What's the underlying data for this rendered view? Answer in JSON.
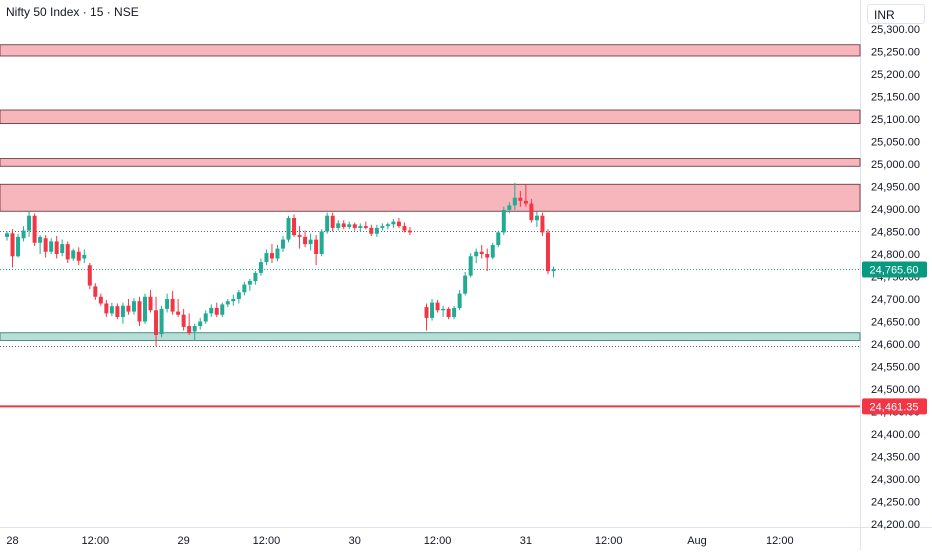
{
  "header": {
    "title": "Nifty 50 Index · 15 · NSE",
    "currency": "INR"
  },
  "colors": {
    "up": "#22ab94",
    "down": "#f23645",
    "zone_fill": "#f7b6bc",
    "support_fill": "#b7ddd6",
    "last_price_bg": "#089981",
    "level_line": "#f23645"
  },
  "chart_data": {
    "type": "candlestick",
    "title": "Nifty 50 Index · 15 · NSE",
    "currency": "INR",
    "ylim": [
      24175,
      25335
    ],
    "y_ticks": [
      25300,
      25250,
      25200,
      25150,
      25100,
      25050,
      25000,
      24950,
      24900,
      24850,
      24800,
      24750,
      24700,
      24650,
      24600,
      24550,
      24500,
      24450,
      24400,
      24350,
      24300,
      24250,
      24200
    ],
    "y_tick_labels": [
      "25,300.00",
      "25,250.00",
      "25,200.00",
      "25,150.00",
      "25,100.00",
      "25,050.00",
      "25,000.00",
      "24,950.00",
      "24,900.00",
      "24,850.00",
      "24,800.00",
      "24,750.00",
      "24,700.00",
      "24,650.00",
      "24,600.00",
      "24,550.00",
      "24,500.00",
      "24,450.00",
      "24,400.00",
      "24,350.00",
      "24,300.00",
      "24,250.00",
      "24,200.00"
    ],
    "x_range": [
      0,
      128
    ],
    "x_ticks": [
      {
        "label": "28",
        "x": 1
      },
      {
        "label": "12:00",
        "x": 16
      },
      {
        "label": "29",
        "x": 32
      },
      {
        "label": "12:00",
        "x": 47
      },
      {
        "label": "30",
        "x": 63
      },
      {
        "label": "12:00",
        "x": 78
      },
      {
        "label": "31",
        "x": 94
      },
      {
        "label": "12:00",
        "x": 109
      },
      {
        "label": "Aug",
        "x": 125
      },
      {
        "label": "12:00",
        "x": 140
      }
    ],
    "zones": [
      {
        "from": 25240,
        "to": 25265,
        "kind": "resistance"
      },
      {
        "from": 25090,
        "to": 25120,
        "kind": "resistance"
      },
      {
        "from": 24995,
        "to": 25012,
        "kind": "resistance"
      },
      {
        "from": 24895,
        "to": 24955,
        "kind": "resistance"
      },
      {
        "from": 24608,
        "to": 24625,
        "kind": "support"
      }
    ],
    "dotted_levels": [
      24852,
      24766,
      24596
    ],
    "horizontal_levels": [
      {
        "value": 24461.35,
        "label": "24,461.35"
      }
    ],
    "last_price": {
      "value": 24765.6,
      "label": "24,765.60"
    },
    "candles": [
      {
        "x": 0,
        "o": 24838,
        "h": 24850,
        "l": 24830,
        "c": 24846
      },
      {
        "x": 1,
        "o": 24846,
        "h": 24855,
        "l": 24770,
        "c": 24795
      },
      {
        "x": 2,
        "o": 24795,
        "h": 24845,
        "l": 24792,
        "c": 24838
      },
      {
        "x": 3,
        "o": 24835,
        "h": 24862,
        "l": 24828,
        "c": 24852
      },
      {
        "x": 4,
        "o": 24852,
        "h": 24895,
        "l": 24838,
        "c": 24885
      },
      {
        "x": 5,
        "o": 24885,
        "h": 24890,
        "l": 24818,
        "c": 24825
      },
      {
        "x": 6,
        "o": 24825,
        "h": 24842,
        "l": 24800,
        "c": 24838
      },
      {
        "x": 7,
        "o": 24835,
        "h": 24842,
        "l": 24792,
        "c": 24805
      },
      {
        "x": 8,
        "o": 24805,
        "h": 24835,
        "l": 24800,
        "c": 24828
      },
      {
        "x": 9,
        "o": 24828,
        "h": 24840,
        "l": 24790,
        "c": 24800
      },
      {
        "x": 10,
        "o": 24802,
        "h": 24832,
        "l": 24795,
        "c": 24822
      },
      {
        "x": 11,
        "o": 24822,
        "h": 24828,
        "l": 24780,
        "c": 24788
      },
      {
        "x": 12,
        "o": 24790,
        "h": 24812,
        "l": 24785,
        "c": 24808
      },
      {
        "x": 13,
        "o": 24805,
        "h": 24815,
        "l": 24775,
        "c": 24785
      },
      {
        "x": 14,
        "o": 24790,
        "h": 24810,
        "l": 24780,
        "c": 24798
      },
      {
        "x": 15,
        "o": 24775,
        "h": 24780,
        "l": 24722,
        "c": 24730
      },
      {
        "x": 16,
        "o": 24728,
        "h": 24735,
        "l": 24698,
        "c": 24705
      },
      {
        "x": 17,
        "o": 24705,
        "h": 24712,
        "l": 24685,
        "c": 24690
      },
      {
        "x": 18,
        "o": 24690,
        "h": 24698,
        "l": 24660,
        "c": 24668
      },
      {
        "x": 19,
        "o": 24668,
        "h": 24692,
        "l": 24662,
        "c": 24684
      },
      {
        "x": 20,
        "o": 24684,
        "h": 24690,
        "l": 24655,
        "c": 24660
      },
      {
        "x": 21,
        "o": 24660,
        "h": 24692,
        "l": 24645,
        "c": 24685
      },
      {
        "x": 22,
        "o": 24685,
        "h": 24700,
        "l": 24665,
        "c": 24672
      },
      {
        "x": 23,
        "o": 24672,
        "h": 24702,
        "l": 24665,
        "c": 24695
      },
      {
        "x": 24,
        "o": 24695,
        "h": 24705,
        "l": 24640,
        "c": 24650
      },
      {
        "x": 25,
        "o": 24650,
        "h": 24712,
        "l": 24645,
        "c": 24705
      },
      {
        "x": 26,
        "o": 24705,
        "h": 24720,
        "l": 24670,
        "c": 24675
      },
      {
        "x": 27,
        "o": 24675,
        "h": 24705,
        "l": 24595,
        "c": 24620
      },
      {
        "x": 28,
        "o": 24622,
        "h": 24685,
        "l": 24615,
        "c": 24678
      },
      {
        "x": 29,
        "o": 24678,
        "h": 24712,
        "l": 24670,
        "c": 24700
      },
      {
        "x": 30,
        "o": 24700,
        "h": 24718,
        "l": 24665,
        "c": 24672
      },
      {
        "x": 31,
        "o": 24672,
        "h": 24700,
        "l": 24660,
        "c": 24665
      },
      {
        "x": 32,
        "o": 24665,
        "h": 24678,
        "l": 24630,
        "c": 24638
      },
      {
        "x": 33,
        "o": 24640,
        "h": 24668,
        "l": 24620,
        "c": 24625
      },
      {
        "x": 34,
        "o": 24628,
        "h": 24645,
        "l": 24608,
        "c": 24640
      },
      {
        "x": 35,
        "o": 24640,
        "h": 24658,
        "l": 24632,
        "c": 24650
      },
      {
        "x": 36,
        "o": 24650,
        "h": 24675,
        "l": 24645,
        "c": 24668
      },
      {
        "x": 37,
        "o": 24668,
        "h": 24688,
        "l": 24660,
        "c": 24680
      },
      {
        "x": 38,
        "o": 24680,
        "h": 24692,
        "l": 24660,
        "c": 24665
      },
      {
        "x": 39,
        "o": 24665,
        "h": 24692,
        "l": 24660,
        "c": 24688
      },
      {
        "x": 40,
        "o": 24688,
        "h": 24700,
        "l": 24682,
        "c": 24695
      },
      {
        "x": 41,
        "o": 24695,
        "h": 24710,
        "l": 24685,
        "c": 24700
      },
      {
        "x": 42,
        "o": 24700,
        "h": 24720,
        "l": 24690,
        "c": 24715
      },
      {
        "x": 43,
        "o": 24715,
        "h": 24738,
        "l": 24708,
        "c": 24732
      },
      {
        "x": 44,
        "o": 24732,
        "h": 24745,
        "l": 24718,
        "c": 24740
      },
      {
        "x": 45,
        "o": 24740,
        "h": 24762,
        "l": 24732,
        "c": 24758
      },
      {
        "x": 46,
        "o": 24758,
        "h": 24790,
        "l": 24752,
        "c": 24782
      },
      {
        "x": 47,
        "o": 24782,
        "h": 24810,
        "l": 24775,
        "c": 24802
      },
      {
        "x": 48,
        "o": 24802,
        "h": 24822,
        "l": 24780,
        "c": 24790
      },
      {
        "x": 49,
        "o": 24790,
        "h": 24820,
        "l": 24784,
        "c": 24812
      },
      {
        "x": 50,
        "o": 24812,
        "h": 24840,
        "l": 24805,
        "c": 24832
      },
      {
        "x": 51,
        "o": 24832,
        "h": 24885,
        "l": 24826,
        "c": 24880
      },
      {
        "x": 52,
        "o": 24880,
        "h": 24888,
        "l": 24838,
        "c": 24842
      },
      {
        "x": 53,
        "o": 24842,
        "h": 24862,
        "l": 24812,
        "c": 24838
      },
      {
        "x": 54,
        "o": 24838,
        "h": 24852,
        "l": 24815,
        "c": 24822
      },
      {
        "x": 55,
        "o": 24822,
        "h": 24845,
        "l": 24808,
        "c": 24832
      },
      {
        "x": 56,
        "o": 24832,
        "h": 24842,
        "l": 24775,
        "c": 24800
      },
      {
        "x": 57,
        "o": 24800,
        "h": 24855,
        "l": 24795,
        "c": 24850
      },
      {
        "x": 58,
        "o": 24850,
        "h": 24892,
        "l": 24845,
        "c": 24885
      },
      {
        "x": 59,
        "o": 24885,
        "h": 24892,
        "l": 24850,
        "c": 24858
      },
      {
        "x": 60,
        "o": 24858,
        "h": 24875,
        "l": 24852,
        "c": 24868
      },
      {
        "x": 61,
        "o": 24868,
        "h": 24875,
        "l": 24855,
        "c": 24860
      },
      {
        "x": 62,
        "o": 24860,
        "h": 24872,
        "l": 24855,
        "c": 24866
      },
      {
        "x": 63,
        "o": 24866,
        "h": 24870,
        "l": 24852,
        "c": 24858
      },
      {
        "x": 64,
        "o": 24858,
        "h": 24868,
        "l": 24850,
        "c": 24862
      },
      {
        "x": 65,
        "o": 24862,
        "h": 24872,
        "l": 24855,
        "c": 24858
      },
      {
        "x": 66,
        "o": 24858,
        "h": 24865,
        "l": 24840,
        "c": 24845
      },
      {
        "x": 67,
        "o": 24845,
        "h": 24865,
        "l": 24838,
        "c": 24858
      },
      {
        "x": 68,
        "o": 24858,
        "h": 24868,
        "l": 24852,
        "c": 24862
      },
      {
        "x": 69,
        "o": 24862,
        "h": 24870,
        "l": 24855,
        "c": 24866
      },
      {
        "x": 70,
        "o": 24866,
        "h": 24878,
        "l": 24858,
        "c": 24872
      },
      {
        "x": 71,
        "o": 24872,
        "h": 24880,
        "l": 24858,
        "c": 24862
      },
      {
        "x": 72,
        "o": 24862,
        "h": 24870,
        "l": 24848,
        "c": 24852
      },
      {
        "x": 73,
        "o": 24852,
        "h": 24860,
        "l": 24842,
        "c": 24848
      },
      {
        "x": 76,
        "o": 24682,
        "h": 24690,
        "l": 24630,
        "c": 24658
      },
      {
        "x": 77,
        "o": 24658,
        "h": 24700,
        "l": 24652,
        "c": 24692
      },
      {
        "x": 78,
        "o": 24692,
        "h": 24698,
        "l": 24670,
        "c": 24675
      },
      {
        "x": 79,
        "o": 24675,
        "h": 24685,
        "l": 24660,
        "c": 24678
      },
      {
        "x": 80,
        "o": 24678,
        "h": 24682,
        "l": 24655,
        "c": 24660
      },
      {
        "x": 81,
        "o": 24660,
        "h": 24685,
        "l": 24655,
        "c": 24680
      },
      {
        "x": 82,
        "o": 24680,
        "h": 24720,
        "l": 24675,
        "c": 24712
      },
      {
        "x": 83,
        "o": 24712,
        "h": 24760,
        "l": 24708,
        "c": 24752
      },
      {
        "x": 84,
        "o": 24752,
        "h": 24802,
        "l": 24748,
        "c": 24795
      },
      {
        "x": 85,
        "o": 24795,
        "h": 24812,
        "l": 24780,
        "c": 24805
      },
      {
        "x": 86,
        "o": 24805,
        "h": 24820,
        "l": 24790,
        "c": 24800
      },
      {
        "x": 87,
        "o": 24800,
        "h": 24812,
        "l": 24762,
        "c": 24792
      },
      {
        "x": 88,
        "o": 24792,
        "h": 24825,
        "l": 24788,
        "c": 24820
      },
      {
        "x": 89,
        "o": 24820,
        "h": 24852,
        "l": 24815,
        "c": 24848
      },
      {
        "x": 90,
        "o": 24848,
        "h": 24905,
        "l": 24842,
        "c": 24898
      },
      {
        "x": 91,
        "o": 24898,
        "h": 24915,
        "l": 24890,
        "c": 24908
      },
      {
        "x": 92,
        "o": 24908,
        "h": 24958,
        "l": 24898,
        "c": 24925
      },
      {
        "x": 93,
        "o": 24925,
        "h": 24940,
        "l": 24905,
        "c": 24918
      },
      {
        "x": 94,
        "o": 24918,
        "h": 24955,
        "l": 24905,
        "c": 24912
      },
      {
        "x": 95,
        "o": 24912,
        "h": 24922,
        "l": 24870,
        "c": 24875
      },
      {
        "x": 96,
        "o": 24875,
        "h": 24895,
        "l": 24860,
        "c": 24885
      },
      {
        "x": 97,
        "o": 24885,
        "h": 24892,
        "l": 24840,
        "c": 24848
      },
      {
        "x": 98,
        "o": 24848,
        "h": 24855,
        "l": 24755,
        "c": 24762
      },
      {
        "x": 99,
        "o": 24762,
        "h": 24772,
        "l": 24748,
        "c": 24766
      }
    ]
  }
}
